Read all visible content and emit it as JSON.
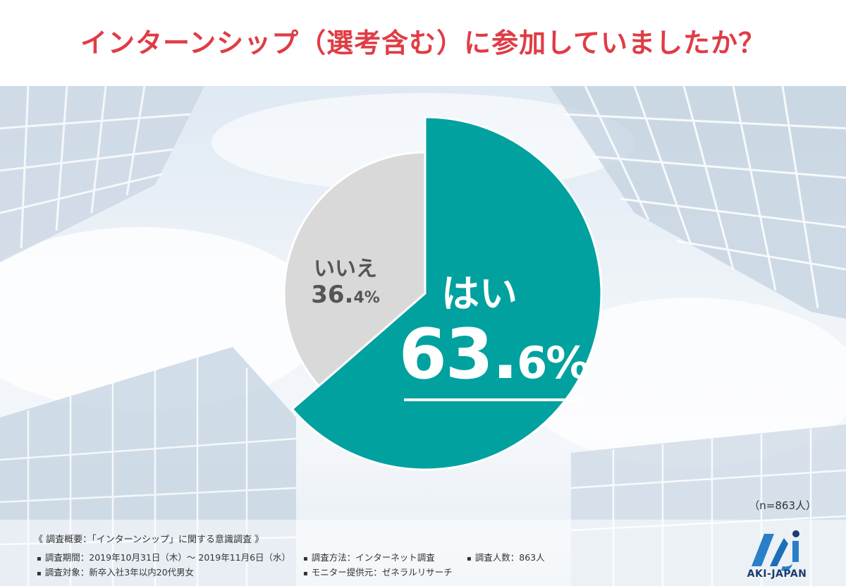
{
  "title": "インターンシップ（選考含む）に参加していましたか？",
  "colors": {
    "title": "#e03c45",
    "yes": "#00a19f",
    "no": "#d9d9d9",
    "no_text": "#555555"
  },
  "chart_data": {
    "type": "pie",
    "slices": [
      {
        "label": "はい",
        "value": 63.6,
        "value_text": "63.",
        "value_small": "6%",
        "color": "#00a19f"
      },
      {
        "label": "いいえ",
        "value": 36.4,
        "value_text": "36.",
        "value_small": "4%",
        "color": "#d9d9d9"
      }
    ],
    "sample_note": "（n=863人）"
  },
  "survey": {
    "heading": "《 調査概要：「インターンシップ」に関する意識調査 》",
    "period": "調査期間：2019年10月31日（木）～ 2019年11月6日（水）",
    "method": "調査方法：インターネット調査",
    "count": "調査人数：863人",
    "target": "調査対象：新卒入社3年以内20代男女",
    "provider": "モニター提供元：ゼネラルリサーチ"
  },
  "logo": {
    "text": "AKI-JAPAN"
  }
}
